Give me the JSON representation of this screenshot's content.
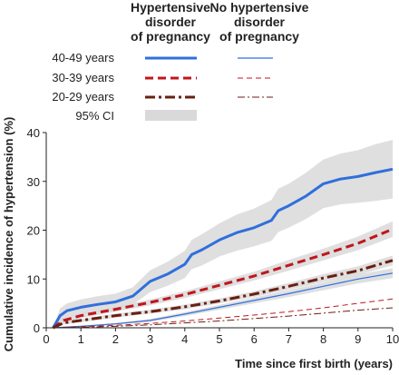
{
  "legend": {
    "col1_heading": [
      "Hypertensive",
      "disorder",
      "of pregnancy"
    ],
    "col2_heading": [
      "No hypertensive",
      "disorder",
      "of pregnancy"
    ],
    "rows": [
      {
        "label": "40-49 years",
        "style": "solid"
      },
      {
        "label": "30-39 years",
        "style": "dashed"
      },
      {
        "label": "20-29 years",
        "style": "dashdot"
      },
      {
        "label": "95% CI",
        "style": "band"
      }
    ]
  },
  "colors": {
    "age_40_49": "#2f6fdc",
    "age_30_39": "#c0161d",
    "age_20_29": "#6a1f12",
    "ci_band": "#d9d9d9",
    "axis": "#222222"
  },
  "chart_data": {
    "type": "line",
    "title": "",
    "xlabel": "Time since first birth (years)",
    "ylabel": "Cumulative incidence of hypertension (%)",
    "xlim": [
      0,
      10
    ],
    "ylim": [
      0,
      40
    ],
    "xticks": [
      0,
      1,
      2,
      3,
      4,
      5,
      6,
      7,
      8,
      9,
      10
    ],
    "yticks": [
      0,
      10,
      20,
      30,
      40
    ],
    "grid": false,
    "legend_position": "top",
    "series": [
      {
        "key": "age_40_49",
        "group": "Hypertensive disorder of pregnancy",
        "age": "40-49 years",
        "x": [
          0.2,
          0.4,
          0.6,
          1,
          1.5,
          2,
          2.5,
          3,
          3.5,
          4,
          4.2,
          4.5,
          5,
          5.5,
          6,
          6.5,
          6.7,
          7,
          7.5,
          8,
          8.5,
          9,
          9.5,
          10
        ],
        "y": [
          0,
          2.5,
          3.5,
          4.2,
          4.8,
          5.3,
          6.5,
          9.5,
          11,
          13,
          15,
          16,
          18,
          19.5,
          20.5,
          22,
          24,
          25,
          27,
          29.5,
          30.5,
          31,
          31.8,
          32.5
        ],
        "ci_low": [
          0,
          1,
          2,
          2.8,
          3.2,
          3.7,
          4.8,
          7.3,
          8.6,
          10.2,
          12,
          12.8,
          14.6,
          15.8,
          16.7,
          17.8,
          19.6,
          20.5,
          22.3,
          24.5,
          25.3,
          25.6,
          26,
          26.5
        ],
        "ci_high": [
          0,
          4,
          5,
          5.8,
          6.5,
          7,
          8.3,
          11.8,
          13.5,
          15.8,
          18,
          19.2,
          21.4,
          23.2,
          24.4,
          26.2,
          28.5,
          29.5,
          31.8,
          34.5,
          35.7,
          36.4,
          37.6,
          38.5
        ]
      },
      {
        "key": "age_30_39",
        "group": "Hypertensive disorder of pregnancy",
        "age": "30-39 years",
        "x": [
          0.2,
          0.5,
          1,
          2,
          3,
          4,
          5,
          6,
          7,
          8,
          9,
          10
        ],
        "y": [
          0,
          1.5,
          2.5,
          3.8,
          5.2,
          6.8,
          8.7,
          10.6,
          12.8,
          15,
          17.3,
          20.2
        ],
        "ci_low": [
          0,
          1.1,
          2,
          3.3,
          4.6,
          6.1,
          7.9,
          9.7,
          11.7,
          13.8,
          15.9,
          18.6
        ],
        "ci_high": [
          0,
          1.9,
          3,
          4.3,
          5.8,
          7.5,
          9.5,
          11.5,
          13.9,
          16.2,
          18.7,
          21.8
        ]
      },
      {
        "key": "age_20_29",
        "group": "Hypertensive disorder of pregnancy",
        "age": "20-29 years",
        "x": [
          0.2,
          0.5,
          1,
          2,
          3,
          4,
          5,
          6,
          7,
          8,
          9,
          10
        ],
        "y": [
          0,
          1,
          1.5,
          2.5,
          3.3,
          4.3,
          5.5,
          6.9,
          8.5,
          10.2,
          11.7,
          13.8
        ],
        "ci_low": [
          0,
          0.7,
          1.2,
          2.1,
          2.9,
          3.8,
          5,
          6.3,
          7.8,
          9.4,
          10.8,
          12.8
        ],
        "ci_high": [
          0,
          1.3,
          1.8,
          2.9,
          3.7,
          4.8,
          6,
          7.5,
          9.2,
          11,
          12.6,
          14.8
        ]
      },
      {
        "key": "age_40_49",
        "group": "No hypertensive disorder of pregnancy",
        "age": "40-49 years",
        "x": [
          0.2,
          1,
          2,
          3,
          4,
          5,
          6,
          7,
          8,
          9,
          10
        ],
        "y": [
          0,
          0.3,
          0.8,
          1.5,
          2.8,
          4.2,
          5.6,
          7,
          8.5,
          10,
          11.2
        ],
        "ci_low": [
          0,
          0.2,
          0.6,
          1.2,
          2.4,
          3.7,
          5,
          6.3,
          7.7,
          9.1,
          10.2
        ],
        "ci_high": [
          0,
          0.4,
          1,
          1.8,
          3.2,
          4.7,
          6.2,
          7.7,
          9.3,
          10.9,
          12.2
        ]
      },
      {
        "key": "age_30_39",
        "group": "No hypertensive disorder of pregnancy",
        "age": "30-39 years",
        "x": [
          0.2,
          1,
          2,
          3,
          4,
          5,
          6,
          7,
          8,
          9,
          10
        ],
        "y": [
          0,
          0.2,
          0.5,
          0.9,
          1.4,
          2,
          2.6,
          3.3,
          4.1,
          5,
          5.9
        ]
      },
      {
        "key": "age_20_29",
        "group": "No hypertensive disorder of pregnancy",
        "age": "20-29 years",
        "x": [
          0.2,
          1,
          2,
          3,
          4,
          5,
          6,
          7,
          8,
          9,
          10
        ],
        "y": [
          0,
          0.1,
          0.3,
          0.6,
          1,
          1.4,
          1.9,
          2.4,
          3,
          3.6,
          4.1
        ]
      }
    ]
  }
}
